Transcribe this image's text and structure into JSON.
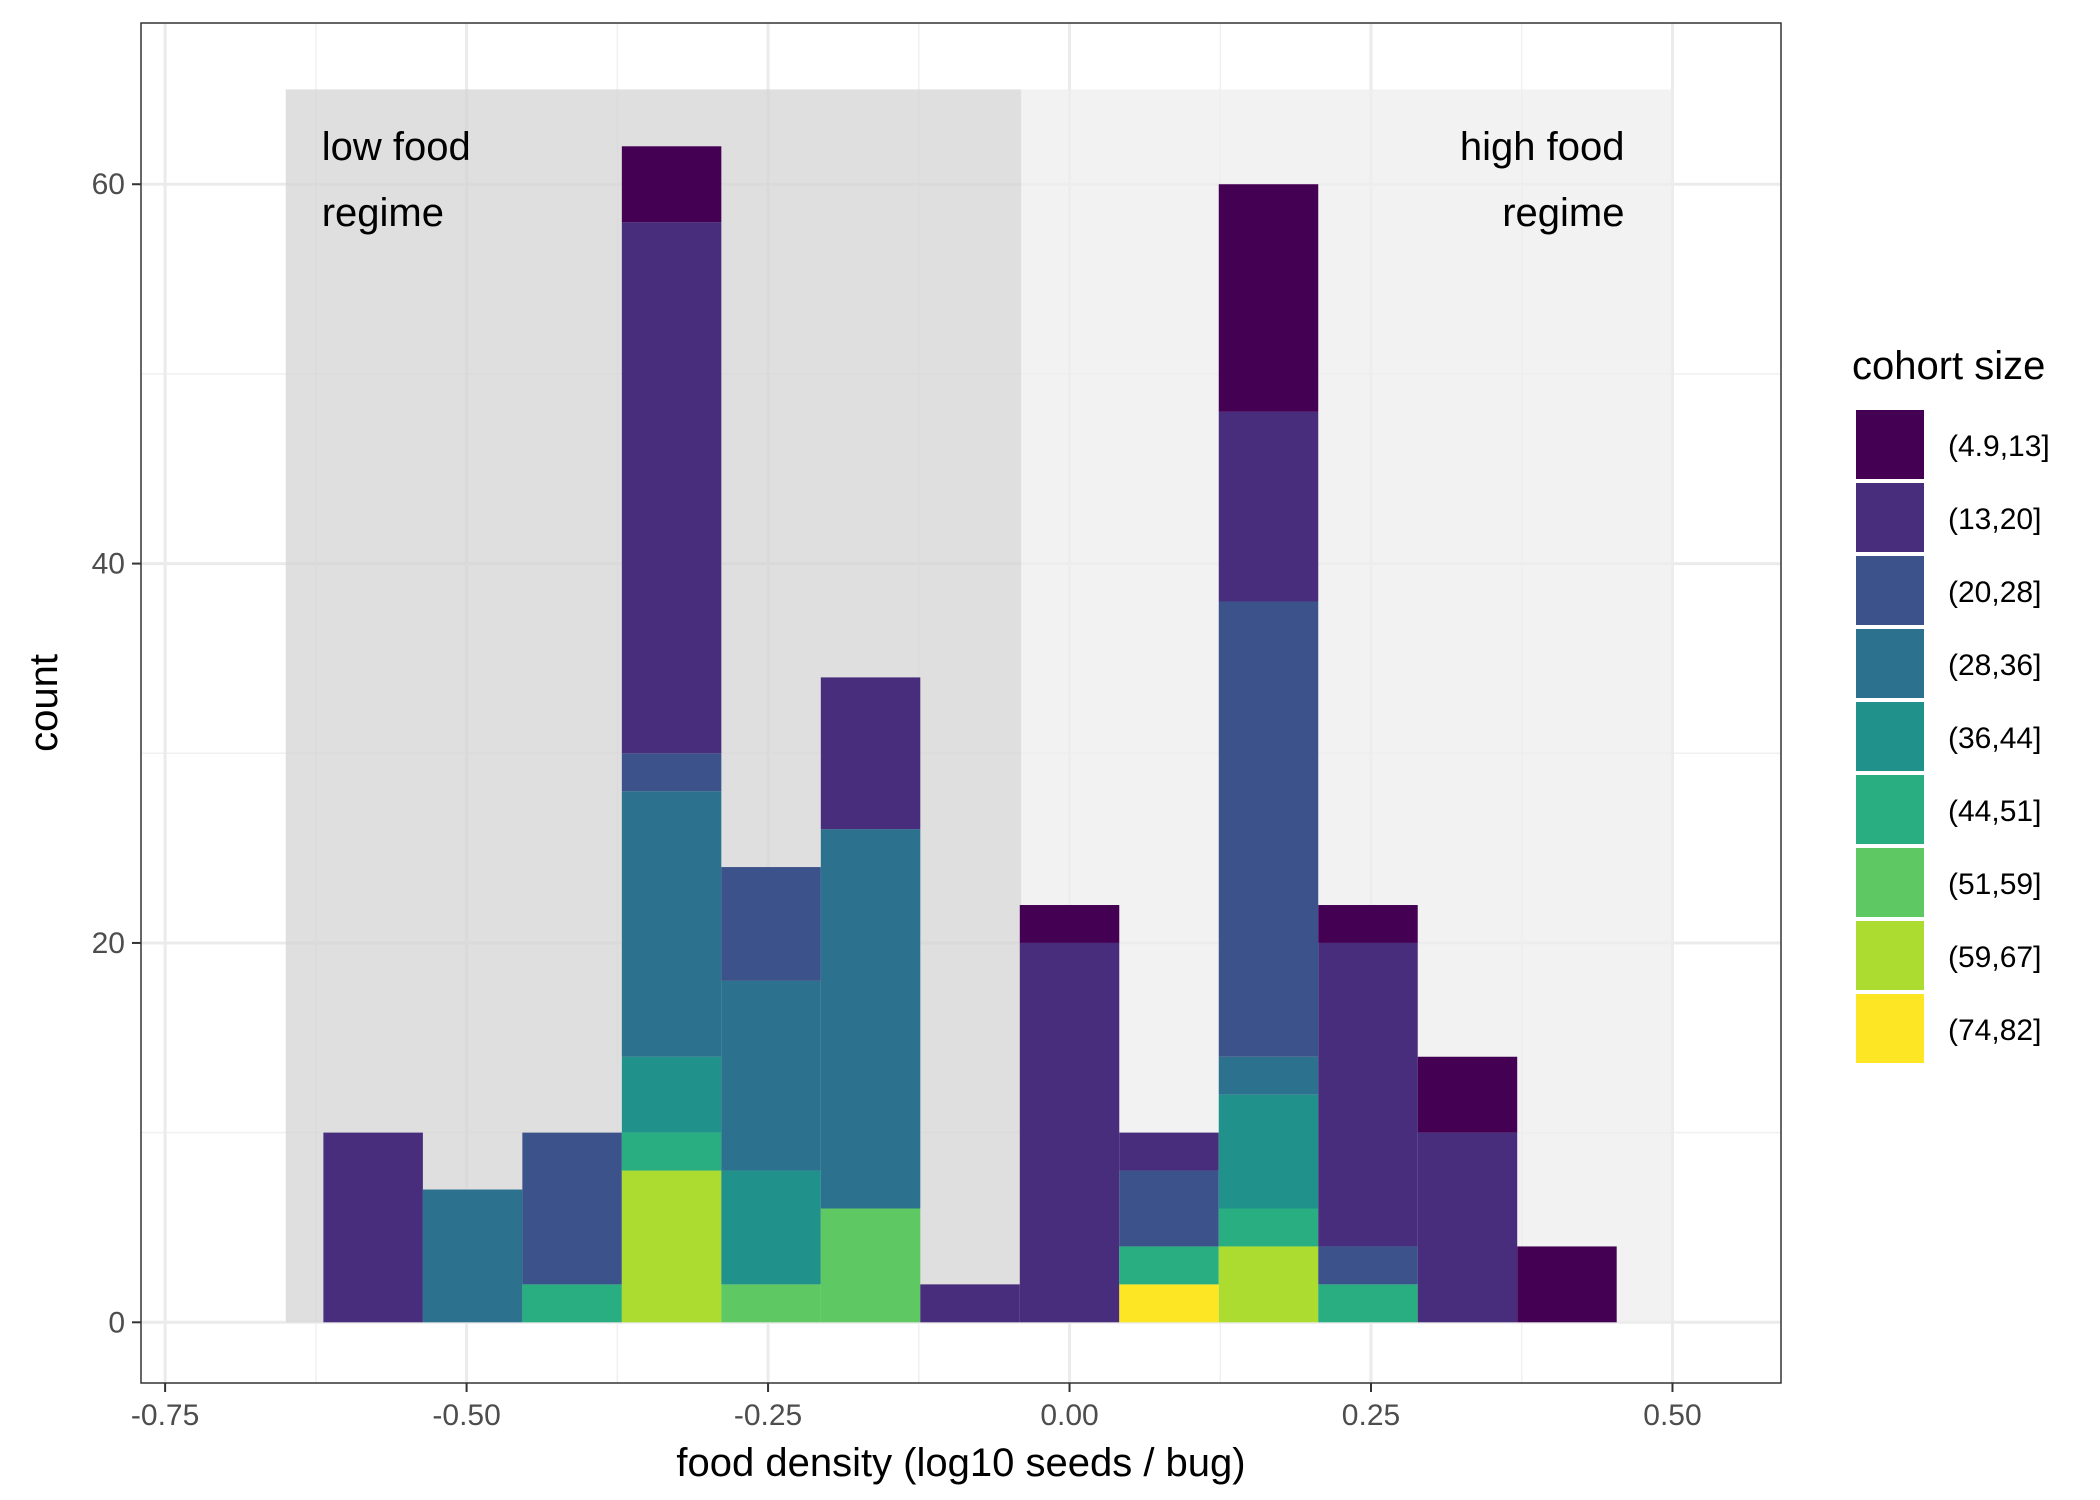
{
  "chart_data": {
    "type": "bar",
    "stacked": true,
    "xlabel": "food density (log10 seeds / bug)",
    "ylabel": "count",
    "xlim": [
      -0.77,
      0.59
    ],
    "ylim": [
      -3.2,
      68.5
    ],
    "grid": true,
    "x_ticks": [
      {
        "value": -0.75,
        "label": "-0.75"
      },
      {
        "value": -0.5,
        "label": "-0.50"
      },
      {
        "value": -0.25,
        "label": "-0.25"
      },
      {
        "value": 0.0,
        "label": "0.00"
      },
      {
        "value": 0.25,
        "label": "0.25"
      },
      {
        "value": 0.5,
        "label": "0.50"
      }
    ],
    "y_ticks": [
      {
        "value": 0,
        "label": "0"
      },
      {
        "value": 20,
        "label": "20"
      },
      {
        "value": 40,
        "label": "40"
      },
      {
        "value": 60,
        "label": "60"
      }
    ],
    "regions": [
      {
        "name": "low-food-regime",
        "x_start": -0.65,
        "x_end": -0.04,
        "y_max": 65,
        "color": "#d4d4d4",
        "label_lines": [
          "low food",
          "regime"
        ],
        "label_align": "left"
      },
      {
        "name": "high-food-regime",
        "x_start": -0.04,
        "x_end": 0.5,
        "y_max": 65,
        "color": "#ededed",
        "label_lines": [
          "high food",
          "regime"
        ],
        "label_align": "right"
      }
    ],
    "bin_width": 0.0825,
    "bins": [
      -0.5775,
      -0.495,
      -0.4125,
      -0.33,
      -0.2475,
      -0.165,
      -0.0825,
      0.0,
      0.0825,
      0.165,
      0.2475,
      0.33,
      0.4125
    ],
    "legend": {
      "title": "cohort size",
      "position": "right"
    },
    "series": [
      {
        "name": "(74,82]",
        "color": "#fde725",
        "values": [
          0,
          0,
          0,
          0,
          0,
          0,
          0,
          0,
          2,
          0,
          0,
          0,
          0
        ]
      },
      {
        "name": "(59,67]",
        "color": "#addc30",
        "values": [
          0,
          0,
          0,
          8,
          0,
          0,
          0,
          0,
          0,
          4,
          0,
          0,
          0
        ]
      },
      {
        "name": "(51,59]",
        "color": "#5ec962",
        "values": [
          0,
          0,
          0,
          0,
          2,
          6,
          0,
          0,
          0,
          0,
          0,
          0,
          0
        ]
      },
      {
        "name": "(44,51]",
        "color": "#28ae80",
        "values": [
          0,
          0,
          2,
          2,
          0,
          0,
          0,
          0,
          2,
          2,
          2,
          0,
          0
        ]
      },
      {
        "name": "(36,44]",
        "color": "#21918c",
        "values": [
          0,
          0,
          0,
          4,
          6,
          0,
          0,
          0,
          0,
          6,
          0,
          0,
          0
        ]
      },
      {
        "name": "(28,36]",
        "color": "#2c728e",
        "values": [
          0,
          7,
          0,
          14,
          10,
          20,
          0,
          0,
          0,
          2,
          0,
          0,
          0
        ]
      },
      {
        "name": "(20,28]",
        "color": "#3b528b",
        "values": [
          0,
          0,
          8,
          2,
          6,
          0,
          0,
          0,
          4,
          24,
          2,
          0,
          0
        ]
      },
      {
        "name": "(13,20]",
        "color": "#472d7b",
        "values": [
          10,
          0,
          0,
          28,
          0,
          8,
          2,
          20,
          2,
          10,
          16,
          10,
          0
        ]
      },
      {
        "name": "(4.9,13]",
        "color": "#440154",
        "values": [
          0,
          0,
          0,
          4,
          0,
          0,
          0,
          2,
          0,
          12,
          2,
          4,
          4
        ]
      }
    ],
    "legend_order": [
      "(4.9,13]",
      "(13,20]",
      "(20,28]",
      "(28,36]",
      "(36,44]",
      "(44,51]",
      "(51,59]",
      "(59,67]",
      "(74,82]"
    ]
  }
}
